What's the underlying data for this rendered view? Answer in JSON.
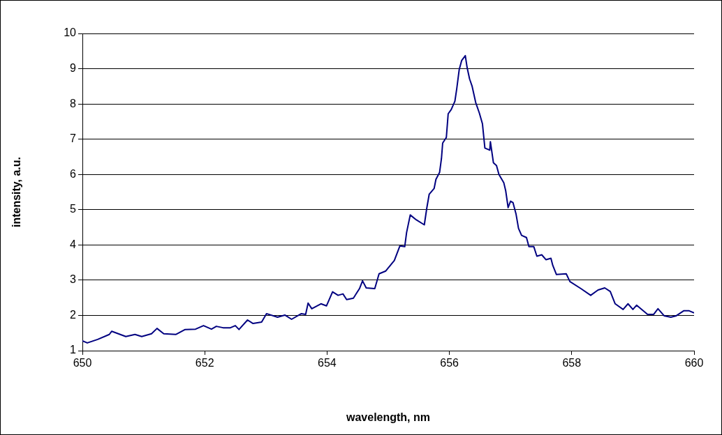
{
  "chart_data": {
    "type": "line",
    "xlabel": "wavelength, nm",
    "ylabel": "intensity, a.u.",
    "x": [
      650.0,
      650.08,
      650.25,
      650.44,
      650.48,
      650.71,
      650.86,
      650.97,
      651.13,
      651.22,
      651.33,
      651.53,
      651.68,
      651.85,
      651.98,
      652.11,
      652.19,
      652.3,
      652.42,
      652.5,
      652.56,
      652.7,
      652.79,
      652.93,
      653.01,
      653.19,
      653.31,
      653.42,
      653.58,
      653.65,
      653.69,
      653.75,
      653.9,
      653.99,
      654.09,
      654.18,
      654.26,
      654.32,
      654.43,
      654.53,
      654.58,
      654.64,
      654.78,
      654.85,
      654.96,
      655.1,
      655.19,
      655.27,
      655.3,
      655.36,
      655.46,
      655.59,
      655.63,
      655.67,
      655.75,
      655.78,
      655.84,
      655.87,
      655.89,
      655.95,
      655.98,
      656.03,
      656.09,
      656.12,
      656.16,
      656.2,
      656.26,
      656.29,
      656.33,
      656.37,
      656.43,
      656.49,
      656.54,
      656.58,
      656.66,
      656.67,
      656.72,
      656.77,
      656.81,
      656.89,
      656.92,
      656.96,
      657.0,
      657.04,
      657.09,
      657.13,
      657.18,
      657.26,
      657.3,
      657.38,
      657.43,
      657.51,
      657.58,
      657.66,
      657.69,
      657.75,
      657.91,
      657.97,
      658.15,
      658.31,
      658.43,
      658.54,
      658.63,
      658.71,
      658.84,
      658.92,
      659.0,
      659.06,
      659.24,
      659.34,
      659.41,
      659.51,
      659.62,
      659.71,
      659.83,
      659.92,
      660.0
    ],
    "series": [
      {
        "color": "#000080",
        "values": [
          1.28,
          1.22,
          1.32,
          1.46,
          1.55,
          1.4,
          1.46,
          1.4,
          1.48,
          1.63,
          1.48,
          1.46,
          1.6,
          1.61,
          1.71,
          1.61,
          1.69,
          1.65,
          1.65,
          1.71,
          1.6,
          1.87,
          1.77,
          1.81,
          2.05,
          1.95,
          2.01,
          1.89,
          2.05,
          2.03,
          2.35,
          2.19,
          2.33,
          2.27,
          2.67,
          2.57,
          2.61,
          2.45,
          2.49,
          2.76,
          2.98,
          2.78,
          2.76,
          3.18,
          3.26,
          3.56,
          3.97,
          3.95,
          4.35,
          4.85,
          4.71,
          4.57,
          5.04,
          5.44,
          5.6,
          5.86,
          6.06,
          6.45,
          6.89,
          7.05,
          7.72,
          7.84,
          8.08,
          8.43,
          8.97,
          9.23,
          9.37,
          9.03,
          8.71,
          8.51,
          8.04,
          7.74,
          7.44,
          6.75,
          6.69,
          6.93,
          6.33,
          6.25,
          6.0,
          5.76,
          5.54,
          5.06,
          5.24,
          5.2,
          4.87,
          4.47,
          4.27,
          4.21,
          3.95,
          3.95,
          3.68,
          3.72,
          3.58,
          3.62,
          3.42,
          3.16,
          3.18,
          2.96,
          2.76,
          2.57,
          2.72,
          2.78,
          2.68,
          2.33,
          2.17,
          2.33,
          2.17,
          2.29,
          2.03,
          2.03,
          2.19,
          1.99,
          1.95,
          1.99,
          2.13,
          2.13,
          2.07
        ]
      }
    ],
    "xlim": [
      650,
      660
    ],
    "xticks": [
      650,
      652,
      654,
      656,
      658,
      660
    ],
    "ylim": [
      1,
      10
    ],
    "yticks": [
      1,
      2,
      3,
      4,
      5,
      6,
      7,
      8,
      9,
      10
    ],
    "grid": "y",
    "legend": false,
    "marker": "none",
    "line_style": "solid"
  }
}
